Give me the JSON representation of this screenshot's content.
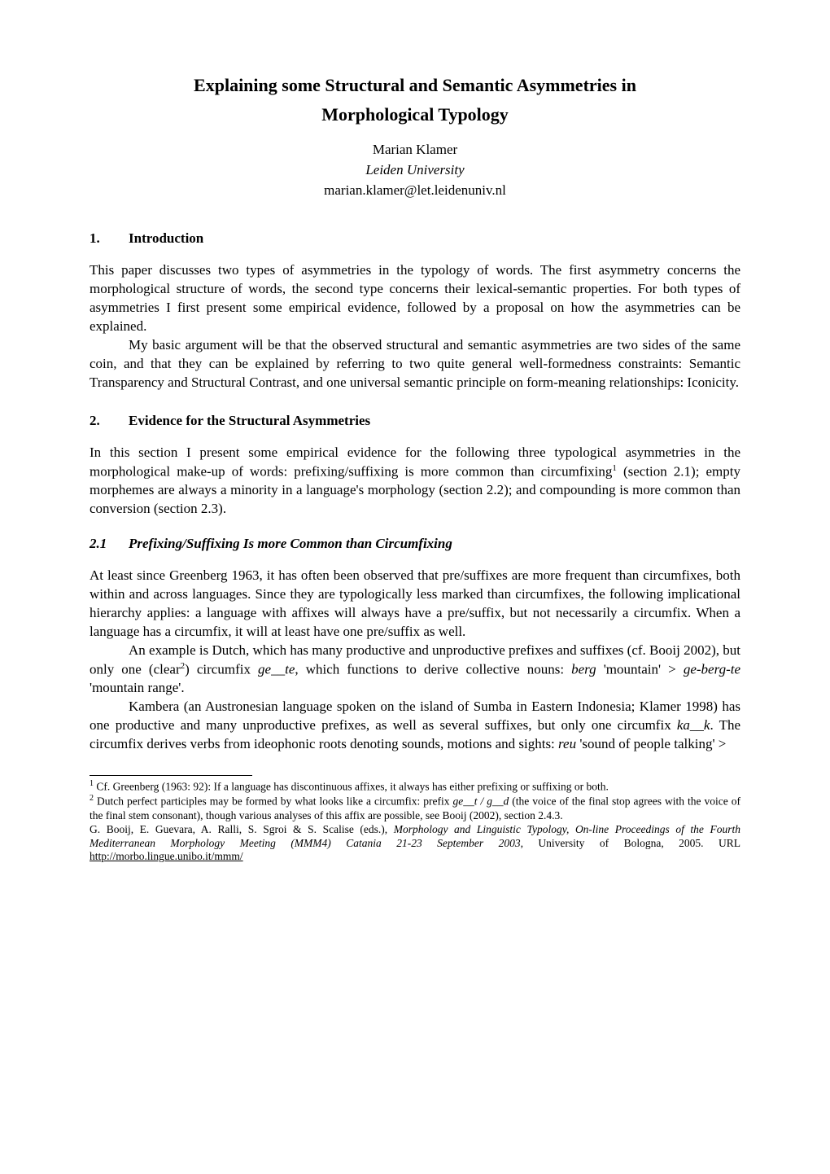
{
  "title_line1": "Explaining some Structural and Semantic Asymmetries in",
  "title_line2": "Morphological Typology",
  "author": "Marian Klamer",
  "affiliation": "Leiden University",
  "email": "marian.klamer@let.leidenuniv.nl",
  "section1": {
    "number": "1.",
    "title": "Introduction",
    "p1": "This paper discusses two types of asymmetries in the typology of words. The first asymmetry concerns the morphological structure of words, the second type concerns their lexical-semantic properties. For both types of asymmetries I first present some empirical evidence, followed by a proposal on how the asymmetries can be explained.",
    "p2": "My basic argument will be that the observed structural and semantic asymmetries are two sides of the same coin, and that they can be explained by referring to two quite general well-formedness constraints: Semantic Transparency and Structural Contrast, and one universal semantic principle on form-meaning relationships: Iconicity."
  },
  "section2": {
    "number": "2.",
    "title": "Evidence for the Structural Asymmetries",
    "p1a": "In this section I present some empirical evidence for the following three typological asymmetries in the morphological make-up of words: prefixing/suffixing is more common than circumfixing",
    "p1b": " (section 2.1); empty morphemes are always a minority in a language's morphology (section 2.2); and compounding is more common than conversion (section 2.3).",
    "ref1": "1"
  },
  "subsection21": {
    "number": "2.1",
    "title": "Prefixing/Suffixing Is more Common than Circumfixing",
    "p1": "At least since Greenberg 1963, it has often been observed that pre/suffixes are more frequent than circumfixes, both within and across languages. Since they are typologically less marked than circumfixes, the following implicational hierarchy applies: a language with affixes will always have a pre/suffix, but not necessarily a circumfix. When a language has a circumfix, it will at least have one pre/suffix as well.",
    "p2a": "An example is Dutch, which has many productive and unproductive prefixes and suffixes (cf. Booij 2002), but only one (clear",
    "p2b": ") circumfix ",
    "p2_ital1": "ge__te",
    "p2c": ", which functions to derive collective nouns: ",
    "p2_ital2": "berg",
    "p2d": " 'mountain' > ",
    "p2_ital3": "ge-berg-te",
    "p2e": " 'mountain range'.",
    "ref2": "2",
    "p3a": "Kambera (an Austronesian language spoken on the island of Sumba in Eastern Indonesia; Klamer 1998) has one productive and many unproductive prefixes, as well as several suffixes, but only one circumfix ",
    "p3_ital1": "ka__k",
    "p3b": ". The circumfix derives verbs from ideophonic roots denoting sounds, motions and sights: ",
    "p3_ital2": "reu",
    "p3c": " 'sound of people talking' >"
  },
  "footnotes": {
    "fn1_num": "1",
    "fn1": " Cf. Greenberg (1963: 92): If a language has discontinuous affixes, it always has either prefixing or suffixing or both.",
    "fn2_num": "2",
    "fn2a": " Dutch perfect participles may be formed by what looks like a circumfix: prefix ",
    "fn2_ital1": "ge__t / g__d",
    "fn2b": " (the voice of the final stop agrees with the voice of the final stem consonant), though various analyses of this affix are possible, see Booij (2002), section 2.4.3."
  },
  "proceedings": {
    "p1a": "G. Booij, E. Guevara, A. Ralli, S. Sgroi & S. Scalise (eds.), ",
    "p1_ital1": "Morphology and Linguistic Typology, On-line Proceedings of the Fourth Mediterranean Morphology Meeting (MMM4) Catania 21-23 September 2003",
    "p1b": ", University of Bologna, 2005. URL   ",
    "p1_url": "http://morbo.lingue.unibo.it/mmm/"
  }
}
